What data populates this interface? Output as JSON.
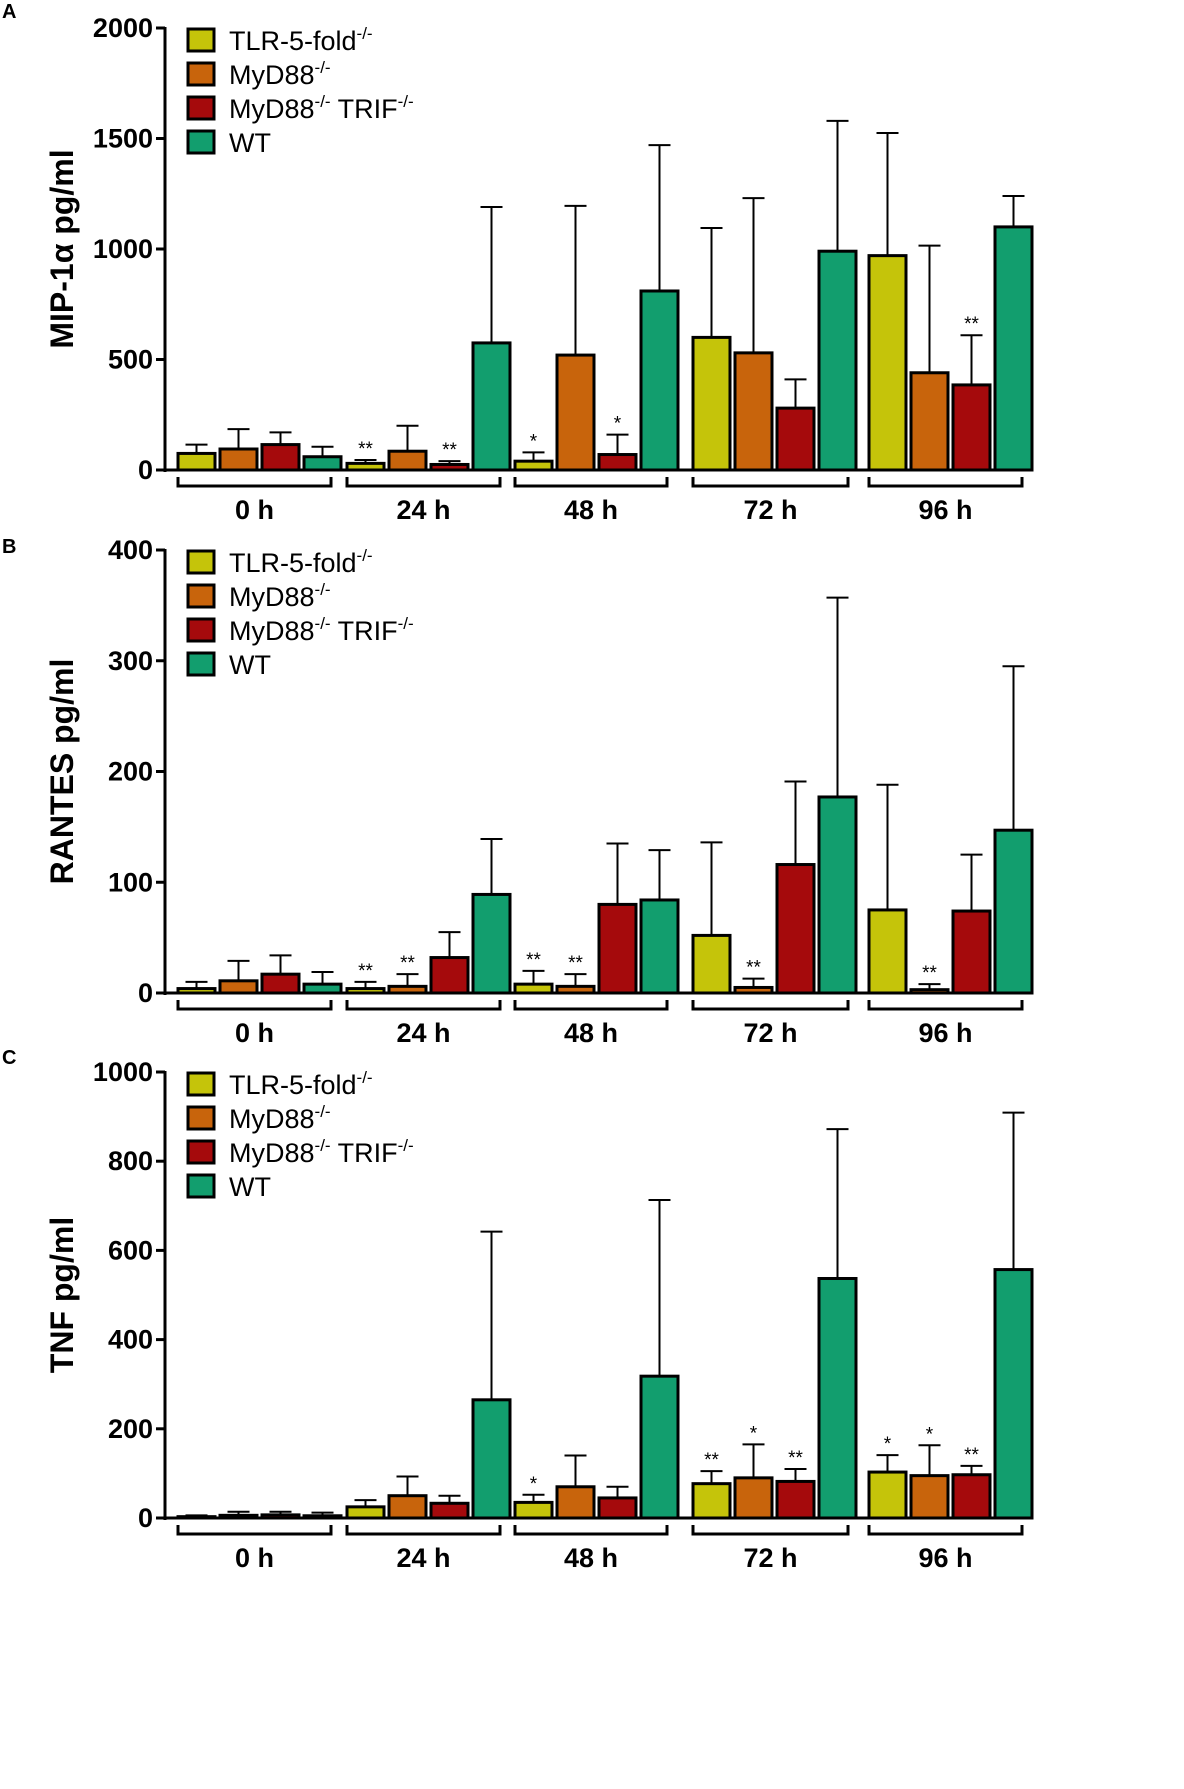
{
  "figure": {
    "legend": [
      {
        "key": "tlr5",
        "base": "TLR-5-fold",
        "sup": "-/-",
        "mid": "",
        "sup2": "",
        "color": "#c5c40a"
      },
      {
        "key": "myd88",
        "base": "MyD88",
        "sup": "-/-",
        "mid": "",
        "sup2": "",
        "color": "#c8640c"
      },
      {
        "key": "dko",
        "base": "MyD88",
        "sup": "-/-",
        "mid": " TRIF",
        "sup2": "-/-",
        "color": "#a50a0c"
      },
      {
        "key": "wt",
        "base": "WT",
        "sup": "",
        "mid": "",
        "sup2": "",
        "color": "#129e6e"
      }
    ]
  },
  "chart_data": [
    {
      "panel": "A",
      "type": "bar",
      "ylabel": "MIP-1α pg/ml",
      "ylim": [
        0,
        2000
      ],
      "yticks": [
        0,
        500,
        1000,
        1500,
        2000
      ],
      "categories": [
        "0 h",
        "24 h",
        "48 h",
        "72 h",
        "96 h"
      ],
      "series": [
        {
          "name": "TLR-5-fold-/-",
          "values": [
            75,
            30,
            40,
            600,
            970
          ],
          "errors": [
            40,
            15,
            40,
            495,
            555
          ],
          "sig": [
            "",
            "**",
            "*",
            "",
            ""
          ]
        },
        {
          "name": "MyD88-/-",
          "values": [
            95,
            85,
            520,
            530,
            440
          ],
          "errors": [
            90,
            115,
            675,
            700,
            575
          ],
          "sig": [
            "",
            "",
            "",
            "",
            ""
          ]
        },
        {
          "name": "MyD88-/- TRIF-/-",
          "values": [
            115,
            25,
            70,
            280,
            385
          ],
          "errors": [
            55,
            15,
            90,
            130,
            225
          ],
          "sig": [
            "",
            "**",
            "*",
            "",
            "**"
          ]
        },
        {
          "name": "WT",
          "values": [
            60,
            575,
            810,
            990,
            1100
          ],
          "errors": [
            45,
            615,
            660,
            590,
            140
          ],
          "sig": [
            "",
            "",
            "",
            "",
            ""
          ]
        }
      ]
    },
    {
      "panel": "B",
      "type": "bar",
      "ylabel": "RANTES pg/ml",
      "ylim": [
        0,
        400
      ],
      "yticks": [
        0,
        100,
        200,
        300,
        400
      ],
      "categories": [
        "0 h",
        "24 h",
        "48 h",
        "72 h",
        "96 h"
      ],
      "series": [
        {
          "name": "TLR-5-fold-/-",
          "values": [
            4,
            4,
            8,
            52,
            75
          ],
          "errors": [
            6,
            6,
            12,
            84,
            113
          ],
          "sig": [
            "",
            "**",
            "**",
            "",
            ""
          ]
        },
        {
          "name": "MyD88-/-",
          "values": [
            11,
            6,
            6,
            5,
            3
          ],
          "errors": [
            18,
            11,
            11,
            8,
            5
          ],
          "sig": [
            "",
            "**",
            "**",
            "**",
            "**"
          ]
        },
        {
          "name": "MyD88-/- TRIF-/-",
          "values": [
            17,
            32,
            80,
            116,
            74
          ],
          "errors": [
            17,
            23,
            55,
            75,
            51
          ],
          "sig": [
            "",
            "",
            "",
            "",
            ""
          ]
        },
        {
          "name": "WT",
          "values": [
            8,
            89,
            84,
            177,
            147
          ],
          "errors": [
            11,
            50,
            45,
            180,
            148
          ],
          "sig": [
            "",
            "",
            "",
            "",
            ""
          ]
        }
      ]
    },
    {
      "panel": "C",
      "type": "bar",
      "ylabel": "TNF pg/ml",
      "ylim": [
        0,
        1000
      ],
      "yticks": [
        0,
        200,
        400,
        600,
        800,
        1000
      ],
      "categories": [
        "0 h",
        "24 h",
        "48 h",
        "72 h",
        "96 h"
      ],
      "series": [
        {
          "name": "TLR-5-fold-/-",
          "values": [
            3,
            25,
            35,
            77,
            103
          ],
          "errors": [
            3,
            15,
            17,
            28,
            38
          ],
          "sig": [
            "",
            "",
            "*",
            "**",
            "*"
          ]
        },
        {
          "name": "MyD88-/-",
          "values": [
            6,
            50,
            70,
            90,
            95
          ],
          "errors": [
            8,
            43,
            70,
            75,
            68
          ],
          "sig": [
            "",
            "",
            "",
            "*",
            "*"
          ]
        },
        {
          "name": "MyD88-/- TRIF-/-",
          "values": [
            7,
            33,
            45,
            82,
            97
          ],
          "errors": [
            7,
            17,
            25,
            28,
            20
          ],
          "sig": [
            "",
            "",
            "",
            "**",
            "**"
          ]
        },
        {
          "name": "WT",
          "values": [
            5,
            265,
            318,
            537,
            557
          ],
          "errors": [
            7,
            377,
            395,
            335,
            352
          ],
          "sig": [
            "",
            "",
            "",
            "",
            ""
          ]
        }
      ]
    }
  ]
}
